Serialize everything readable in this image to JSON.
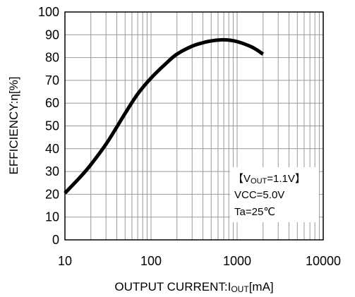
{
  "chart_data": {
    "type": "line",
    "xlabel": "OUTPUT CURRENT:I",
    "xlabel_sub": "OUT",
    "xlabel_unit": "[mA]",
    "ylabel": "EFFICIENCY:η[%]",
    "x_scale": "log",
    "xlim": [
      10,
      10000
    ],
    "ylim": [
      0,
      100
    ],
    "x_ticks": [
      10,
      100,
      1000,
      10000
    ],
    "x_tick_labels": [
      "10",
      "100",
      "1000",
      "10000"
    ],
    "y_ticks": [
      0,
      10,
      20,
      30,
      40,
      50,
      60,
      70,
      80,
      90,
      100
    ],
    "y_tick_labels": [
      "0",
      "10",
      "20",
      "30",
      "40",
      "50",
      "60",
      "70",
      "80",
      "90",
      "100"
    ],
    "grid": true,
    "series": [
      {
        "x": [
          10,
          15,
          20,
          30,
          40,
          50,
          70,
          100,
          150,
          200,
          300,
          400,
          500,
          700,
          1000,
          1500,
          2000
        ],
        "y": [
          20.5,
          27.5,
          33,
          42,
          49.5,
          55.5,
          64,
          71,
          77.5,
          81.5,
          85,
          86.5,
          87.3,
          87.8,
          87,
          84.5,
          81.5
        ]
      }
    ],
    "annotation": {
      "line1_prefix": "【V",
      "line1_sub": "OUT",
      "line1_suffix": "=1.1V】",
      "line2": "VCC=5.0V",
      "line3": "Ta=25℃"
    }
  }
}
